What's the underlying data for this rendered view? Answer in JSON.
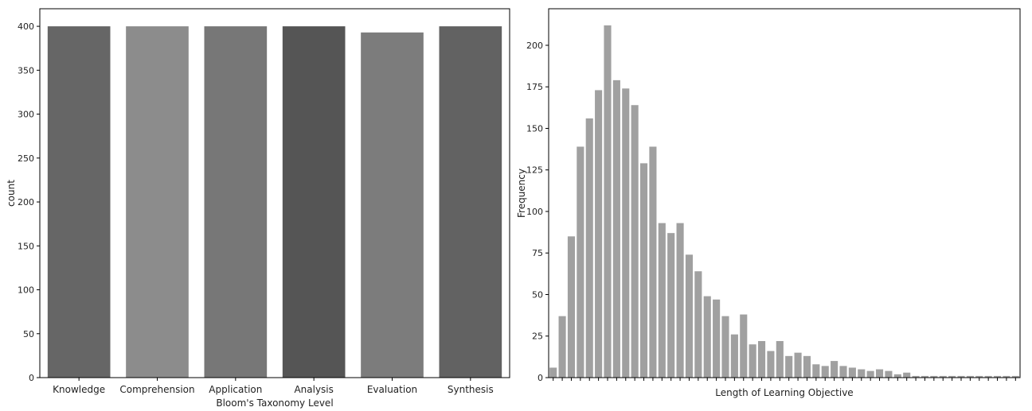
{
  "chart_data": [
    {
      "type": "bar",
      "categories": [
        "Knowledge",
        "Comprehension",
        "Application",
        "Analysis",
        "Evaluation",
        "Synthesis"
      ],
      "values": [
        400,
        400,
        400,
        400,
        393,
        400
      ],
      "colors": [
        "#666666",
        "#8c8c8c",
        "#777777",
        "#555555",
        "#7c7c7c",
        "#626262"
      ],
      "xlabel": "Bloom's Taxonomy Level",
      "ylabel": "count",
      "ylim": [
        0,
        420
      ],
      "yticks": [
        0,
        50,
        100,
        150,
        200,
        250,
        300,
        350,
        400
      ],
      "grid": false
    },
    {
      "type": "bar",
      "values": [
        6,
        37,
        85,
        139,
        156,
        173,
        212,
        179,
        174,
        164,
        129,
        139,
        93,
        87,
        93,
        74,
        64,
        49,
        47,
        37,
        26,
        38,
        20,
        22,
        16,
        22,
        13,
        15,
        13,
        8,
        7,
        10,
        7,
        6,
        5,
        4,
        5,
        4,
        2,
        3,
        1,
        1,
        1,
        1,
        1,
        1,
        1,
        1,
        1,
        1,
        1,
        1
      ],
      "color": "#a0a0a0",
      "xlabel": "Length of Learning Objective",
      "ylabel": "Frequency",
      "ylim": [
        0,
        222
      ],
      "yticks": [
        0,
        25,
        50,
        75,
        100,
        125,
        150,
        175,
        200
      ],
      "grid": false
    }
  ]
}
